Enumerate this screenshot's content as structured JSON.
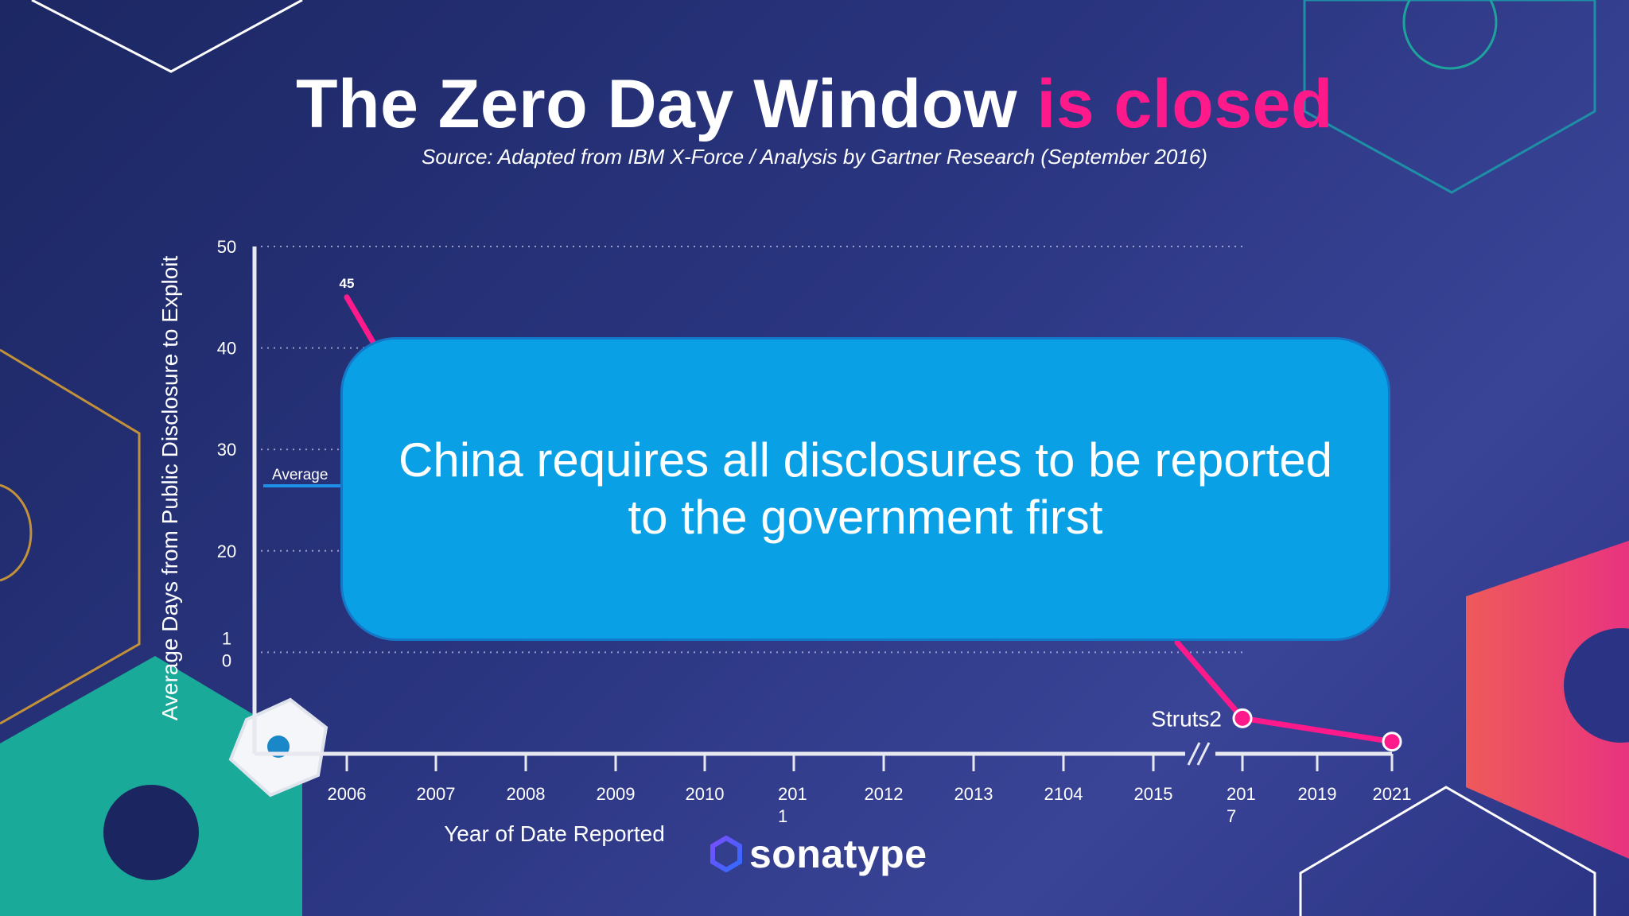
{
  "title": {
    "main": "The Zero Day Window ",
    "accent": "is closed"
  },
  "subtitle": "Source: Adapted from IBM X-Force / Analysis by Gartner Research (September 2016)",
  "callout": {
    "text": "China requires all disclosures to be reported to the government first"
  },
  "logo": {
    "text": "sonatype",
    "icon": "hexagon-logo-icon"
  },
  "chart_data": {
    "type": "line",
    "xlabel": "Year of Date Reported",
    "ylabel": "Average Days from Public Disclosure to Exploit",
    "ylim": [
      0,
      50
    ],
    "y_ticks": [
      "50",
      "40",
      "30",
      "20",
      "1\n0"
    ],
    "grid": "dotted horizontal",
    "categories": [
      "2006",
      "2007",
      "2008",
      "2009",
      "2010",
      "201\n1",
      "2012",
      "2013",
      "2104",
      "2015",
      "201\n7",
      "2019",
      "2021"
    ],
    "axis_break_between": [
      "2015",
      "201\n7"
    ],
    "series": [
      {
        "points": [
          {
            "x": "2006",
            "y": 45,
            "label": "45"
          },
          {
            "x": "201\n7",
            "y": 3.5,
            "label": "Struts2"
          },
          {
            "x": "2021",
            "y": 1.2
          }
        ]
      }
    ],
    "reference_line": {
      "label": "Average",
      "value": 27
    },
    "colors": {
      "series": "#ff1a8c",
      "average": "#1e90e8",
      "axis": "#e8e8f0"
    }
  }
}
